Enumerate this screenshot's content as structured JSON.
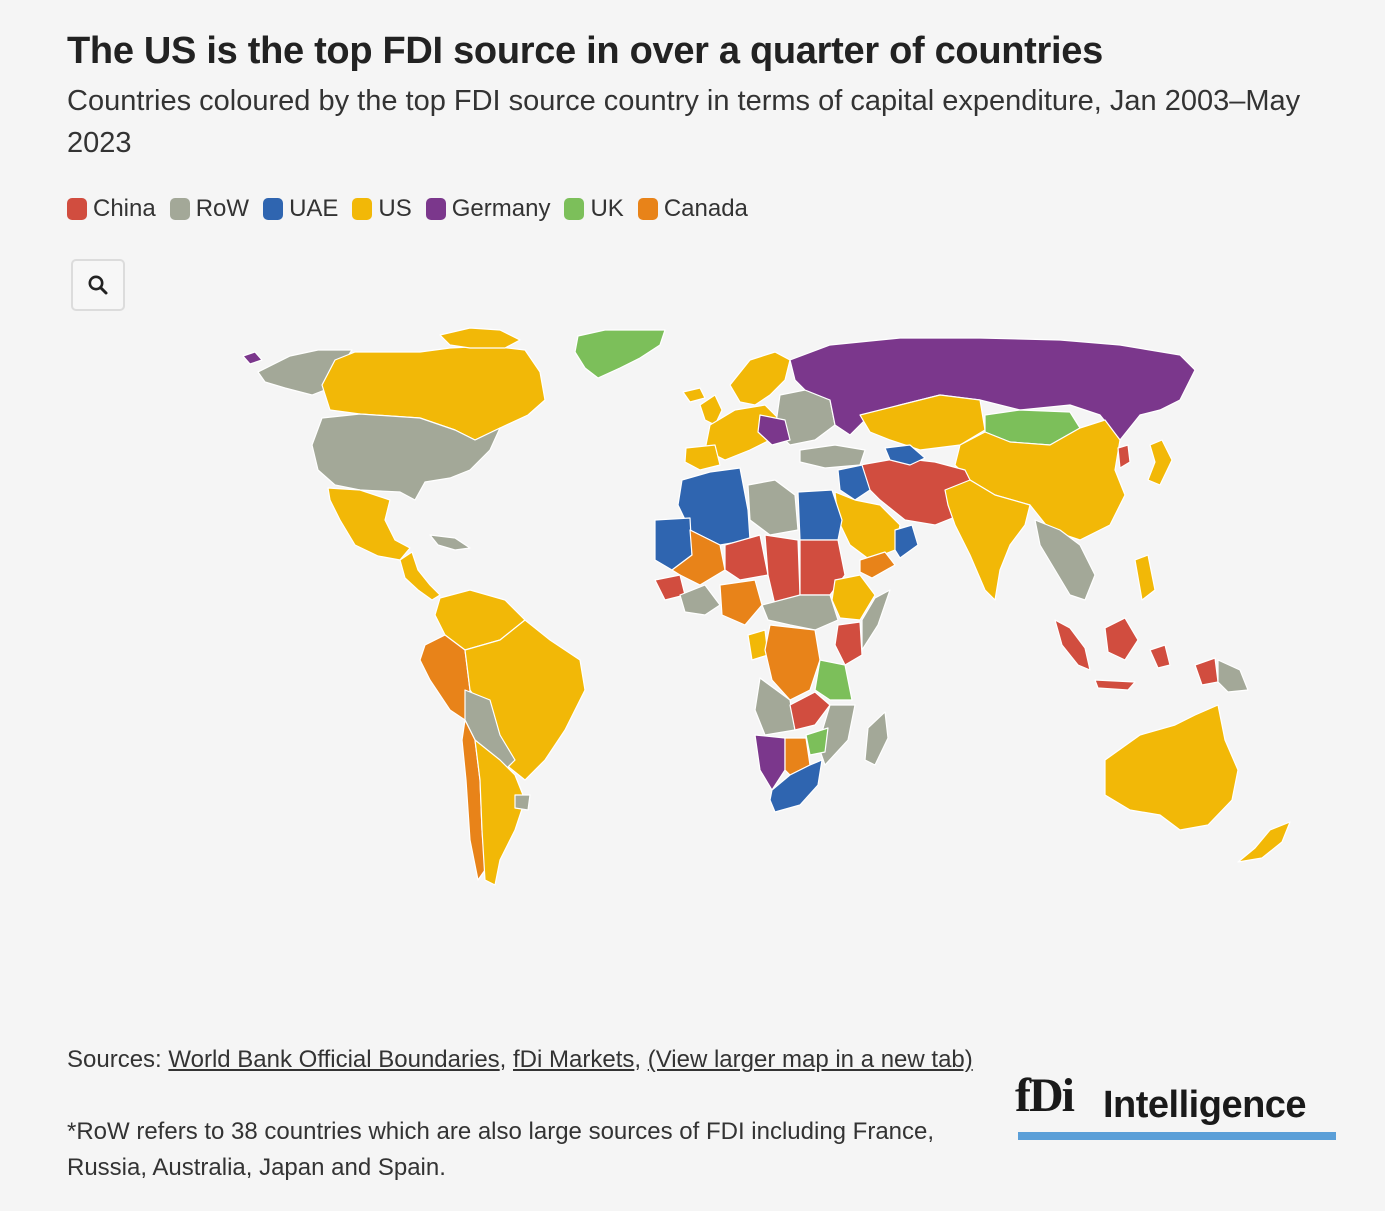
{
  "title": "The US is the top FDI source in over a quarter of countries",
  "subtitle": "Countries coloured by the top FDI source country in terms of capital expenditure, Jan 2003–May 2023",
  "legend": [
    {
      "label": "China",
      "color": "#d14d3f"
    },
    {
      "label": "RoW",
      "color": "#a3a898"
    },
    {
      "label": "UAE",
      "color": "#2f65b0"
    },
    {
      "label": "US",
      "color": "#f2b807"
    },
    {
      "label": "Germany",
      "color": "#7b378c"
    },
    {
      "label": "UK",
      "color": "#7cbf5a"
    },
    {
      "label": "Canada",
      "color": "#e88319"
    }
  ],
  "zoom_icon": "search-icon",
  "sources": {
    "prefix": "Sources: ",
    "link1": "World Bank Official Boundaries",
    "sep1": ", ",
    "link2": "fDi Markets",
    "sep2": ", ",
    "link3": "(View larger map in a new tab)"
  },
  "footnote": "*RoW refers to 38 countries which are also large sources of FDI including France, Russia, Australia, Japan and Spain.",
  "logo": {
    "mark": "fDi",
    "text": "Intelligence",
    "bar_color": "#5b9fd8"
  }
}
